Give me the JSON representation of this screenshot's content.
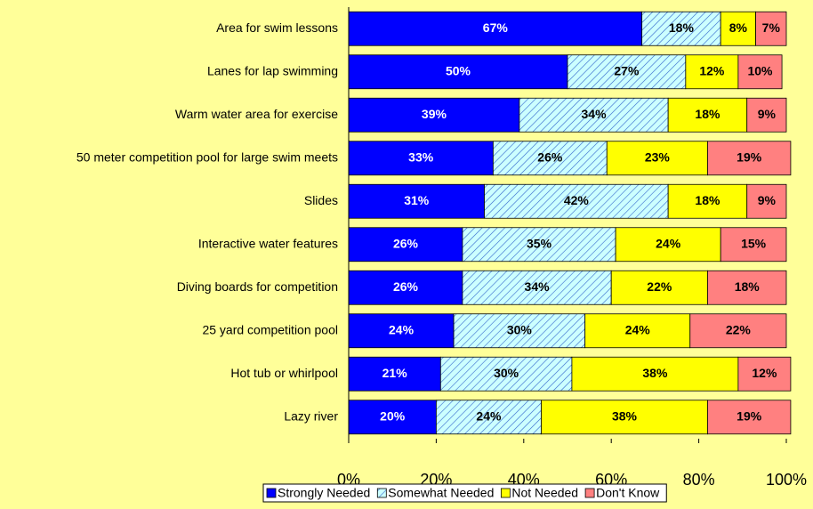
{
  "chart_data": {
    "type": "stacked-bar-horizontal",
    "categories": [
      "Area for swim lessons",
      "Lanes for lap swimming",
      "Warm water area for exercise",
      "50 meter competition pool for large swim meets",
      "Slides",
      "Interactive water features",
      "Diving boards for competition",
      "25 yard competition pool",
      "Hot tub or whirlpool",
      "Lazy river"
    ],
    "series": [
      {
        "name": "Strongly Needed",
        "color": "#0000ff",
        "label_color": "#ffffff",
        "values": [
          67,
          50,
          39,
          33,
          31,
          26,
          26,
          24,
          21,
          20
        ],
        "value_labels": [
          "67%",
          "50%",
          "39%",
          "33%",
          "31%",
          "26%",
          "26%",
          "24%",
          "21%",
          "20%"
        ]
      },
      {
        "name": "Somewhat Needed",
        "color": "#ccffff",
        "hatch": true,
        "label_color": "#000000",
        "values": [
          18,
          27,
          34,
          26,
          42,
          35,
          34,
          30,
          30,
          24
        ],
        "value_labels": [
          "18%",
          "27%",
          "34%",
          "26%",
          "42%",
          "35%",
          "34%",
          "30%",
          "30%",
          "24%"
        ]
      },
      {
        "name": "Not Needed",
        "color": "#ffff00",
        "label_color": "#000000",
        "values": [
          8,
          12,
          18,
          23,
          18,
          24,
          22,
          24,
          38,
          38
        ],
        "value_labels": [
          "8%",
          "12%",
          "18%",
          "23%",
          "18%",
          "24%",
          "22%",
          "24%",
          "38%",
          "38%"
        ]
      },
      {
        "name": "Don't Know",
        "color": "#ff8080",
        "label_color": "#000000",
        "values": [
          7,
          10,
          9,
          19,
          9,
          15,
          18,
          22,
          12,
          19
        ],
        "value_labels": [
          "7%",
          "10%",
          "9%",
          "19%",
          "9%",
          "15%",
          "18%",
          "22%",
          "12%",
          "19%"
        ]
      }
    ],
    "xlim": [
      0,
      100
    ],
    "xticks": [
      {
        "value": 0,
        "label": "0%"
      },
      {
        "value": 20,
        "label": "20%"
      },
      {
        "value": 40,
        "label": "40%"
      },
      {
        "value": 60,
        "label": "60%"
      },
      {
        "value": 80,
        "label": "80%"
      },
      {
        "value": 100,
        "label": "100%"
      }
    ],
    "legend": "bottom"
  }
}
